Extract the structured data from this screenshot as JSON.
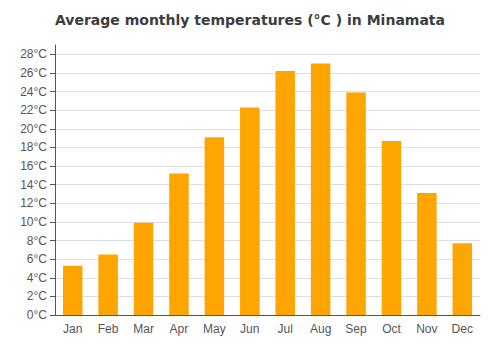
{
  "chart_data": {
    "type": "bar",
    "title": "Average monthly temperatures (°C ) in Minamata",
    "categories": [
      "Jan",
      "Feb",
      "Mar",
      "Apr",
      "May",
      "Jun",
      "Jul",
      "Aug",
      "Sep",
      "Oct",
      "Nov",
      "Dec"
    ],
    "values": [
      5.3,
      6.5,
      9.9,
      15.2,
      19.1,
      22.3,
      26.2,
      27.0,
      23.9,
      18.7,
      13.1,
      7.7
    ],
    "color": "#FFA500",
    "ylim": [
      0,
      29
    ],
    "yticks": [
      {
        "value": 0,
        "label": "0°C"
      },
      {
        "value": 2,
        "label": "2°C"
      },
      {
        "value": 4,
        "label": "4°C"
      },
      {
        "value": 6,
        "label": "6°C"
      },
      {
        "value": 8,
        "label": "8°C"
      },
      {
        "value": 10,
        "label": "10°C"
      },
      {
        "value": 12,
        "label": "12°C"
      },
      {
        "value": 14,
        "label": "14°C"
      },
      {
        "value": 16,
        "label": "16°C"
      },
      {
        "value": 18,
        "label": "18°C"
      },
      {
        "value": 20,
        "label": "20°C"
      },
      {
        "value": 22,
        "label": "22°C"
      },
      {
        "value": 24,
        "label": "24°C"
      },
      {
        "value": 26,
        "label": "26°C"
      },
      {
        "value": 28,
        "label": "28°C"
      }
    ],
    "grid": true
  }
}
